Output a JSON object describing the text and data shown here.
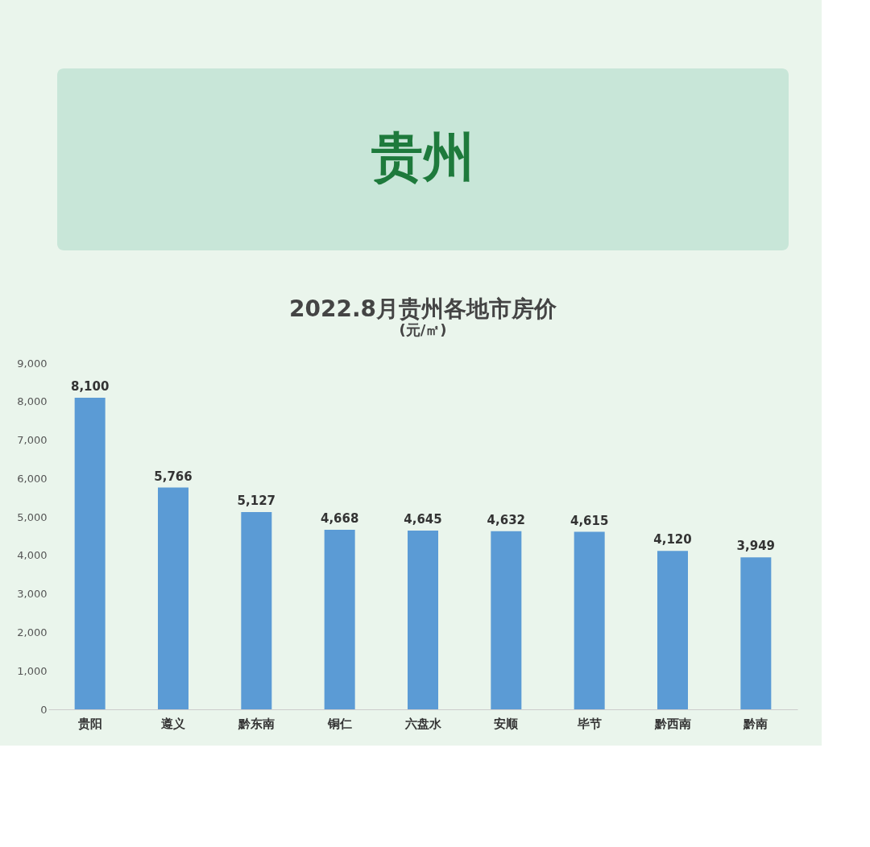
{
  "chart_data": {
    "type": "bar",
    "title": "贵州",
    "subtitle": "2022.8月贵州各地市房价",
    "annotations": [
      "(元/㎡)"
    ],
    "categories": [
      "贵阳",
      "遵义",
      "黔东南",
      "铜仁",
      "六盘水",
      "安顺",
      "毕节",
      "黔西南",
      "黔南"
    ],
    "values": [
      8100,
      5766,
      5127,
      4668,
      4645,
      4632,
      4615,
      4120,
      3949
    ],
    "value_labels": [
      "8,100",
      "5,766",
      "5,127",
      "4,668",
      "4,645",
      "4,632",
      "4,615",
      "4,120",
      "3,949"
    ],
    "color": "#5b9bd5",
    "ylim": [
      0,
      9000
    ],
    "yticks": [
      0,
      {
        "value": 1000,
        "label": "1,000"
      },
      {
        "value": 2000,
        "label": "2,000"
      },
      {
        "value": 3000,
        "label": "3,000"
      },
      {
        "value": 4000,
        "label": "4,000"
      },
      {
        "value": 5000,
        "label": "5,000"
      },
      {
        "value": 6000,
        "label": "6,000"
      },
      {
        "value": 7000,
        "label": "7,000"
      },
      {
        "value": 8000,
        "label": "8,000"
      },
      {
        "value": 9000,
        "label": "9,000"
      }
    ],
    "grid": false
  }
}
